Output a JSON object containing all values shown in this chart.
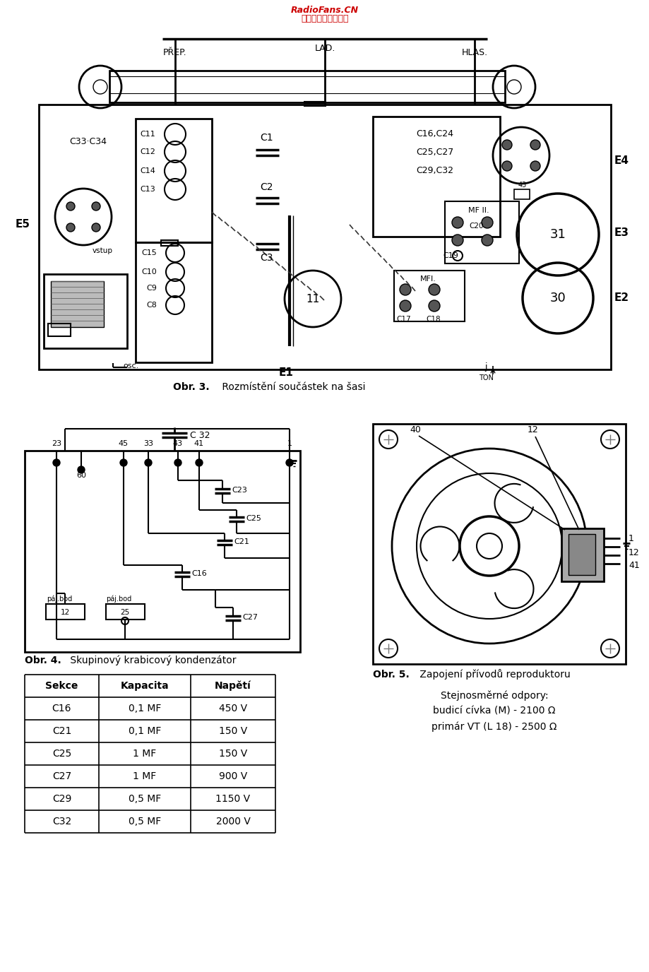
{
  "bg_color": "#ffffff",
  "watermark1": "RadioFans.CN",
  "watermark2": "收音机爱好者资料库",
  "watermark_color": "#cc0000",
  "caption1_bold": "Obr. 3.",
  "caption1_rest": " Rozmístněí součástek na šasi",
  "caption2_bold": "Obr. 4.",
  "caption2_rest": " Skupinový krabicový kondenzátor",
  "caption3_bold": "Obr. 5.",
  "caption3_rest": " Zapojení přívodů reproduktoru",
  "table_header": [
    "Sekce",
    "Kapacita",
    "Napětí"
  ],
  "table_rows": [
    [
      "C16",
      "0,1 MF",
      "450 V"
    ],
    [
      "C21",
      "0,1 MF",
      "150 V"
    ],
    [
      "C25",
      "1 MF",
      "150 V"
    ],
    [
      "C27",
      "1 MF",
      "900 V"
    ],
    [
      "C29",
      "0,5 MF",
      "1150 V"
    ],
    [
      "C32",
      "0,5 MF",
      "2000 V"
    ]
  ],
  "text_below5": "Stejnosměrné odpory:\nbudicí cívka (M) - 2100 Ω\nprimár VT (L 18) - 2500 Ω"
}
